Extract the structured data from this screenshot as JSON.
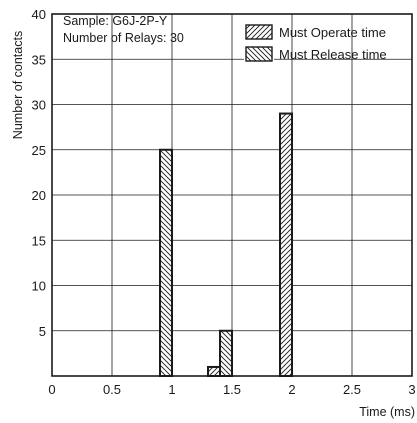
{
  "chart_data": {
    "type": "bar",
    "xlabel": "Time (ms)",
    "ylabel": "Number of contacts",
    "xlim": [
      0,
      3
    ],
    "ylim": [
      0,
      40
    ],
    "x_ticks": [
      "0",
      "0.5",
      "1",
      "1.5",
      "2",
      "2.5",
      "3"
    ],
    "y_ticks": [
      "5",
      "10",
      "15",
      "20",
      "25",
      "30",
      "35",
      "40"
    ],
    "grid": true,
    "legend_position": "top-right",
    "annotation": [
      "Sample: G6J-2P-Y",
      "Number of Relays: 30"
    ],
    "series": [
      {
        "name": "Must Operate time",
        "hatch": "forward-diagonal",
        "points": [
          {
            "x_start": 1.3,
            "x_end": 1.4,
            "value": 1
          },
          {
            "x_start": 1.9,
            "x_end": 2.0,
            "value": 29
          }
        ]
      },
      {
        "name": "Must Release time",
        "hatch": "back-diagonal",
        "points": [
          {
            "x_start": 0.9,
            "x_end": 1.0,
            "value": 25
          },
          {
            "x_start": 1.4,
            "x_end": 1.5,
            "value": 5
          }
        ]
      }
    ]
  }
}
